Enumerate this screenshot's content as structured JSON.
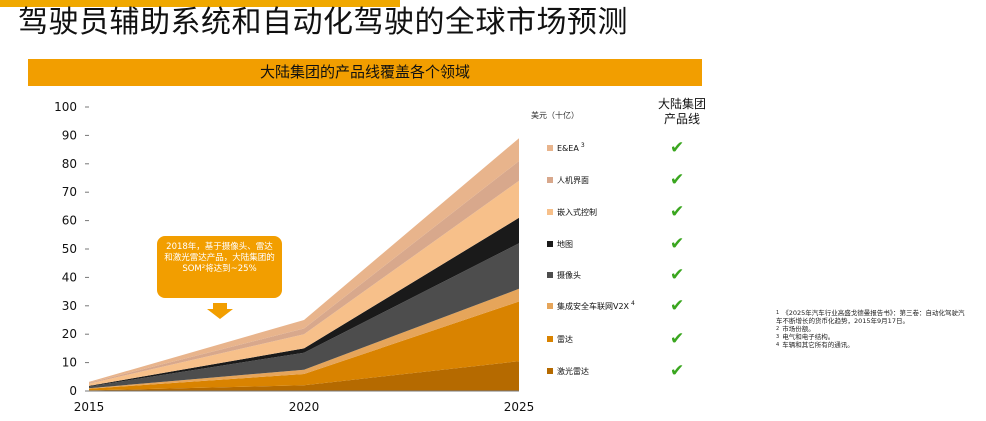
{
  "header": {
    "title": "驾驶员辅助系统和自动化驾驶的全球市场预测",
    "banner": "大陆集团的产品线覆盖各个领域"
  },
  "legend": {
    "unit": "美元（十亿）",
    "portfolio_header_line1": "大陆集团",
    "portfolio_header_line2": "产品线",
    "items": [
      {
        "label": "E&EA",
        "sup": "3",
        "color": "#e8b48c",
        "check": "✔"
      },
      {
        "label": "人机界面",
        "sup": "",
        "color": "#d8a88c",
        "check": "✔"
      },
      {
        "label": "嵌入式控制",
        "sup": "",
        "color": "#f7c08a",
        "check": "✔"
      },
      {
        "label": "地图",
        "sup": "",
        "color": "#1a1a1a",
        "check": "✔"
      },
      {
        "label": "摄像头",
        "sup": "",
        "color": "#4d4d4d",
        "check": "✔"
      },
      {
        "label": "集成安全车联网V2X",
        "sup": "4",
        "color": "#e6a55a",
        "check": "✔"
      },
      {
        "label": "雷达",
        "sup": "",
        "color": "#d98300",
        "check": "✔"
      },
      {
        "label": "激光雷达",
        "sup": "",
        "color": "#b56a00",
        "check": "✔"
      }
    ]
  },
  "callout": {
    "text": "2018年，基于摄像头、雷达和激光雷达产品，大陆集团的SOM²将达到~25%"
  },
  "footnotes": [
    {
      "num": "1",
      "text": "《2025年汽车行业高盛戈德曼报告书》：第三卷：自动化驾驶汽车不断增长的货币化趋势，2015年9月17日。"
    },
    {
      "num": "2",
      "text": "市场份额。"
    },
    {
      "num": "3",
      "text": "电气和电子结构。"
    },
    {
      "num": "4",
      "text": "车辆和其它所有的通讯。"
    }
  ],
  "chart_data": {
    "type": "area",
    "stacked": true,
    "x": [
      2015,
      2020,
      2025
    ],
    "xticks": [
      "2015",
      "2020",
      "2025"
    ],
    "ylim": [
      0,
      100
    ],
    "yticks": [
      "0",
      "10",
      "20",
      "30",
      "40",
      "50",
      "60",
      "70",
      "80",
      "90",
      "100"
    ],
    "grid": false,
    "series": [
      {
        "name": "激光雷达",
        "color": "#b56a00",
        "values": [
          0.2,
          2,
          10.5
        ]
      },
      {
        "name": "雷达",
        "color": "#d98300",
        "values": [
          0.6,
          4,
          21
        ]
      },
      {
        "name": "集成安全车联网V2X",
        "color": "#e6a55a",
        "values": [
          0.2,
          1.5,
          4.5
        ]
      },
      {
        "name": "摄像头",
        "color": "#4d4d4d",
        "values": [
          0.6,
          6,
          16
        ]
      },
      {
        "name": "地图",
        "color": "#1a1a1a",
        "values": [
          0.2,
          1.5,
          9
        ]
      },
      {
        "name": "嵌入式控制",
        "color": "#f7c08a",
        "values": [
          0.8,
          5,
          13
        ]
      },
      {
        "name": "人机界面",
        "color": "#d8a88c",
        "values": [
          0.3,
          2,
          7
        ]
      },
      {
        "name": "E&EA",
        "color": "#e8b48c",
        "values": [
          0.3,
          3,
          8
        ]
      }
    ]
  }
}
